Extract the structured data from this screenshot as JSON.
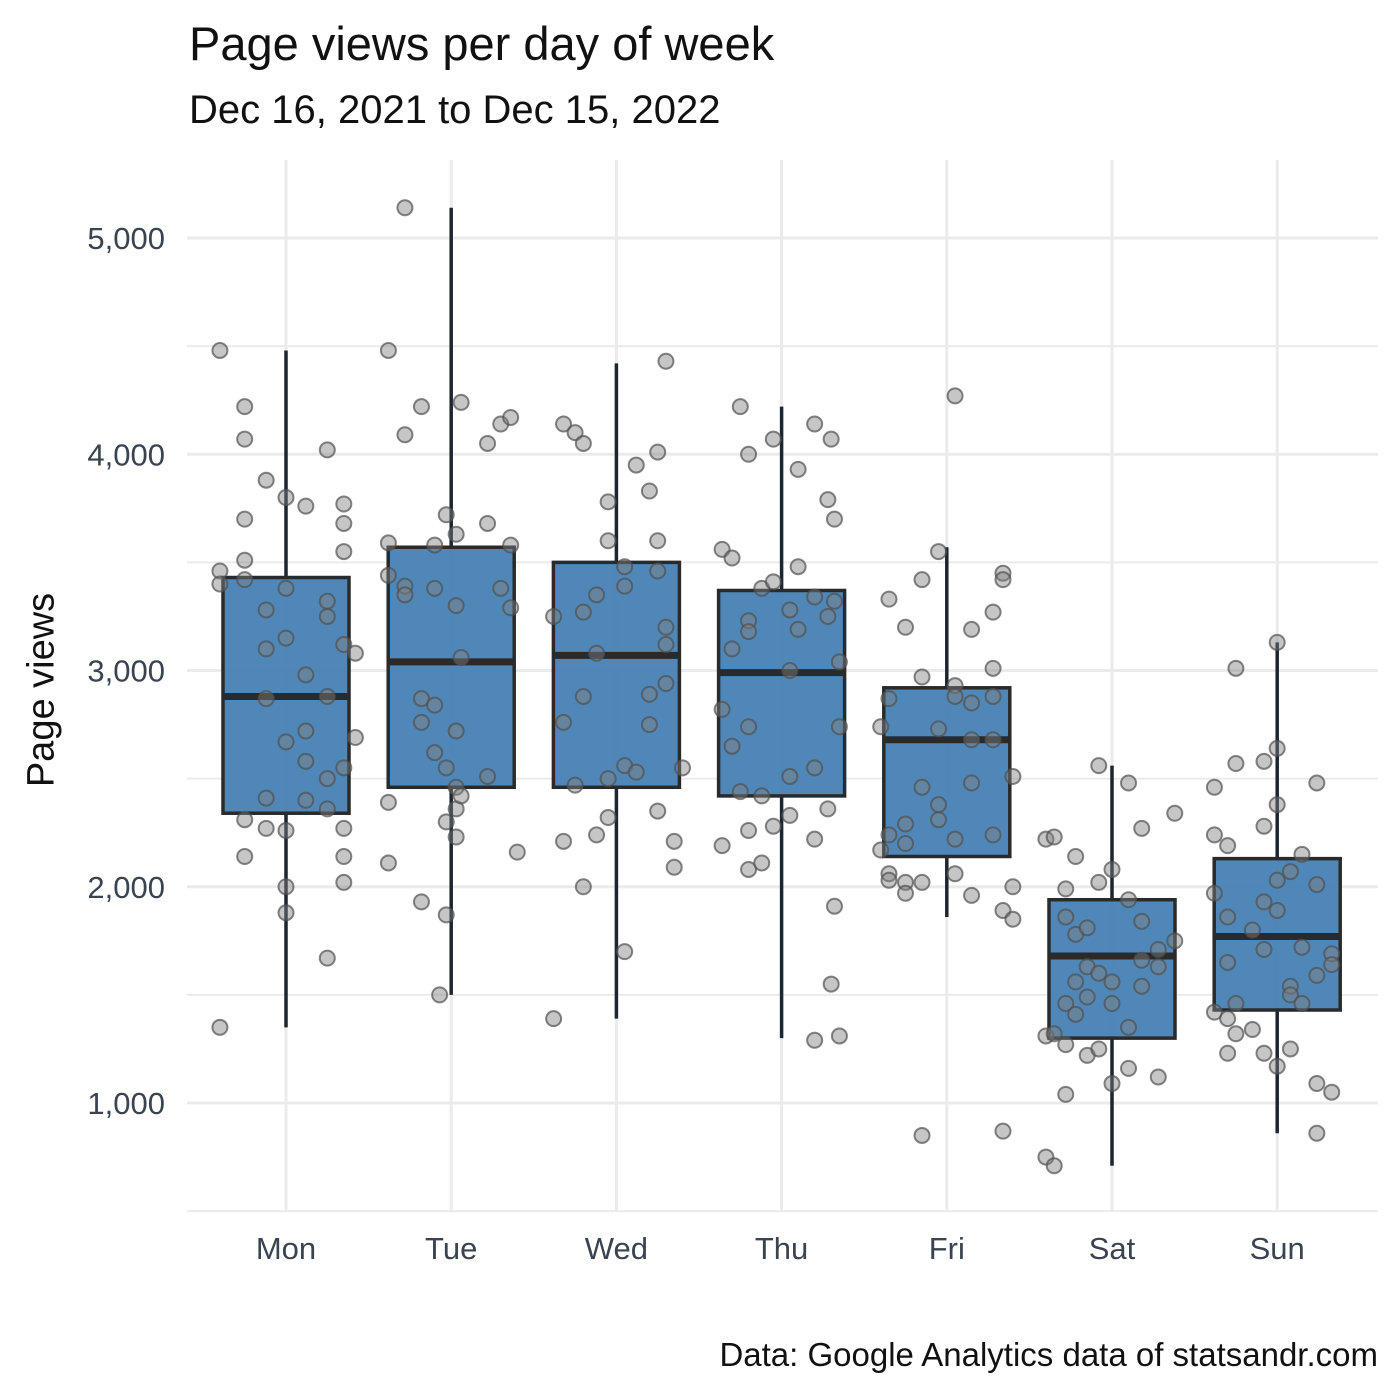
{
  "chart_data": {
    "type": "boxplot",
    "title": "Page views per day of week",
    "subtitle": "Dec 16, 2021 to Dec 15, 2022",
    "caption": "Data: Google Analytics data of statsandr.com",
    "xlabel": "",
    "ylabel": "Page views",
    "ylim": [
      500,
      5300
    ],
    "yticks": [
      1000,
      2000,
      3000,
      4000,
      5000
    ],
    "ytick_labels": [
      "1,000",
      "2,000",
      "3,000",
      "4,000",
      "5,000"
    ],
    "grid": true,
    "box_color": "#4682b4",
    "point_color": "#808080",
    "categories": [
      "Mon",
      "Tue",
      "Wed",
      "Thu",
      "Fri",
      "Sat",
      "Sun"
    ],
    "boxes": [
      {
        "category": "Mon",
        "whisker_low": 1350,
        "q1": 2340,
        "median": 2880,
        "q3": 3430,
        "whisker_high": 4480
      },
      {
        "category": "Tue",
        "whisker_low": 1500,
        "q1": 2460,
        "median": 3040,
        "q3": 3570,
        "whisker_high": 5140
      },
      {
        "category": "Wed",
        "whisker_low": 1390,
        "q1": 2460,
        "median": 3070,
        "q3": 3500,
        "whisker_high": 4420
      },
      {
        "category": "Thu",
        "whisker_low": 1300,
        "q1": 2420,
        "median": 2990,
        "q3": 3370,
        "whisker_high": 4220
      },
      {
        "category": "Fri",
        "whisker_low": 1860,
        "q1": 2140,
        "median": 2680,
        "q3": 2920,
        "whisker_high": 3570
      },
      {
        "category": "Sat",
        "whisker_low": 710,
        "q1": 1300,
        "median": 1680,
        "q3": 1940,
        "whisker_high": 2560
      },
      {
        "category": "Sun",
        "whisker_low": 860,
        "q1": 1430,
        "median": 1770,
        "q3": 2130,
        "whisker_high": 3130
      }
    ],
    "points": [
      {
        "category": "Mon",
        "x_offset": -0.4,
        "values": [
          4480,
          3460,
          3400,
          1350
        ]
      },
      {
        "category": "Mon",
        "x_offset": -0.25,
        "values": [
          4220,
          4070,
          3700,
          3510,
          3420,
          2310,
          2140
        ]
      },
      {
        "category": "Mon",
        "x_offset": -0.12,
        "values": [
          3880,
          3280,
          3100,
          2870,
          2410,
          2270
        ]
      },
      {
        "category": "Mon",
        "x_offset": 0.0,
        "values": [
          3800,
          3380,
          3150,
          2670,
          2260,
          2000,
          1880
        ]
      },
      {
        "category": "Mon",
        "x_offset": 0.12,
        "values": [
          3760,
          2980,
          2720,
          2580,
          2400
        ]
      },
      {
        "category": "Mon",
        "x_offset": 0.25,
        "values": [
          4020,
          3320,
          3250,
          2880,
          2500,
          2360,
          1670
        ]
      },
      {
        "category": "Mon",
        "x_offset": 0.35,
        "values": [
          3770,
          3680,
          3550,
          3120,
          2550,
          2270,
          2140,
          2020
        ]
      },
      {
        "category": "Mon",
        "x_offset": 0.42,
        "values": [
          3080,
          2690
        ]
      },
      {
        "category": "Tue",
        "x_offset": -0.38,
        "values": [
          4480,
          3590,
          3440,
          2390,
          2110
        ]
      },
      {
        "category": "Tue",
        "x_offset": -0.28,
        "values": [
          5140,
          4090,
          3390,
          3350
        ]
      },
      {
        "category": "Tue",
        "x_offset": -0.18,
        "values": [
          4220,
          2870,
          2760,
          1930
        ]
      },
      {
        "category": "Tue",
        "x_offset": -0.1,
        "values": [
          3580,
          3380,
          2840,
          2620
        ]
      },
      {
        "category": "Tue",
        "x_offset": -0.03,
        "values": [
          3720,
          2550,
          2300,
          1870
        ]
      },
      {
        "category": "Tue",
        "x_offset": 0.03,
        "values": [
          3630,
          3300,
          2720,
          2460,
          2360,
          2230
        ]
      },
      {
        "category": "Tue",
        "x_offset": -0.07,
        "values": [
          1500
        ]
      },
      {
        "category": "Tue",
        "x_offset": 0.06,
        "values": [
          4240,
          3060,
          2420
        ]
      },
      {
        "category": "Tue",
        "x_offset": 0.22,
        "values": [
          4050,
          3680,
          2510
        ]
      },
      {
        "category": "Tue",
        "x_offset": 0.3,
        "values": [
          4140,
          3380
        ]
      },
      {
        "category": "Tue",
        "x_offset": 0.36,
        "values": [
          4170,
          3580,
          3290
        ]
      },
      {
        "category": "Tue",
        "x_offset": 0.4,
        "values": [
          2160
        ]
      },
      {
        "category": "Wed",
        "x_offset": -0.38,
        "values": [
          3250,
          1390
        ]
      },
      {
        "category": "Wed",
        "x_offset": -0.32,
        "values": [
          4140,
          2760,
          2210
        ]
      },
      {
        "category": "Wed",
        "x_offset": -0.25,
        "values": [
          4100,
          2470
        ]
      },
      {
        "category": "Wed",
        "x_offset": -0.2,
        "values": [
          4050,
          3270,
          2880,
          2000
        ]
      },
      {
        "category": "Wed",
        "x_offset": -0.12,
        "values": [
          3350,
          3080,
          2240
        ]
      },
      {
        "category": "Wed",
        "x_offset": -0.05,
        "values": [
          3780,
          3600,
          2500,
          2320
        ]
      },
      {
        "category": "Wed",
        "x_offset": 0.05,
        "values": [
          3480,
          3390,
          2560,
          1700
        ]
      },
      {
        "category": "Wed",
        "x_offset": 0.12,
        "values": [
          3950,
          2530
        ]
      },
      {
        "category": "Wed",
        "x_offset": 0.2,
        "values": [
          3830,
          2890,
          2750
        ]
      },
      {
        "category": "Wed",
        "x_offset": 0.25,
        "values": [
          4010,
          3600,
          3460,
          2350
        ]
      },
      {
        "category": "Wed",
        "x_offset": 0.3,
        "values": [
          4430,
          3200,
          3120,
          2940
        ]
      },
      {
        "category": "Wed",
        "x_offset": 0.35,
        "values": [
          2210,
          2090
        ]
      },
      {
        "category": "Wed",
        "x_offset": 0.4,
        "values": [
          2550
        ]
      },
      {
        "category": "Thu",
        "x_offset": -0.36,
        "values": [
          3560,
          2820,
          2190
        ]
      },
      {
        "category": "Thu",
        "x_offset": -0.3,
        "values": [
          3520,
          3100,
          2650
        ]
      },
      {
        "category": "Thu",
        "x_offset": -0.25,
        "values": [
          4220,
          2440
        ]
      },
      {
        "category": "Thu",
        "x_offset": -0.2,
        "values": [
          4000,
          3230,
          3180,
          2740,
          2260,
          2080
        ]
      },
      {
        "category": "Thu",
        "x_offset": -0.12,
        "values": [
          3380,
          2420,
          2110
        ]
      },
      {
        "category": "Thu",
        "x_offset": -0.05,
        "values": [
          4070,
          3410,
          2280
        ]
      },
      {
        "category": "Thu",
        "x_offset": 0.05,
        "values": [
          3280,
          3000,
          2510,
          2330
        ]
      },
      {
        "category": "Thu",
        "x_offset": 0.1,
        "values": [
          3930,
          3480,
          3190
        ]
      },
      {
        "category": "Thu",
        "x_offset": 0.2,
        "values": [
          4140,
          3340,
          2550,
          2220,
          1290
        ]
      },
      {
        "category": "Thu",
        "x_offset": 0.28,
        "values": [
          3790,
          3250,
          2360
        ]
      },
      {
        "category": "Thu",
        "x_offset": 0.3,
        "values": [
          4070,
          1550
        ]
      },
      {
        "category": "Thu",
        "x_offset": 0.32,
        "values": [
          3700,
          3320,
          1910
        ]
      },
      {
        "category": "Thu",
        "x_offset": 0.35,
        "values": [
          3040,
          2740,
          1310
        ]
      },
      {
        "category": "Fri",
        "x_offset": -0.4,
        "values": [
          2740,
          2170
        ]
      },
      {
        "category": "Fri",
        "x_offset": -0.35,
        "values": [
          3330,
          2870,
          2240,
          2060,
          2030
        ]
      },
      {
        "category": "Fri",
        "x_offset": -0.25,
        "values": [
          3200,
          2290,
          2200,
          2020,
          1970
        ]
      },
      {
        "category": "Fri",
        "x_offset": -0.15,
        "values": [
          3420,
          2970,
          2460,
          2020,
          850
        ]
      },
      {
        "category": "Fri",
        "x_offset": -0.05,
        "values": [
          3550,
          2730,
          2310,
          2380
        ]
      },
      {
        "category": "Fri",
        "x_offset": 0.05,
        "values": [
          4270,
          2930,
          2880,
          2220,
          2060
        ]
      },
      {
        "category": "Fri",
        "x_offset": 0.15,
        "values": [
          3190,
          2850,
          2680,
          2480,
          1960
        ]
      },
      {
        "category": "Fri",
        "x_offset": 0.28,
        "values": [
          3270,
          3010,
          2880,
          2680,
          2240
        ]
      },
      {
        "category": "Fri",
        "x_offset": 0.34,
        "values": [
          3450,
          3420,
          1890,
          870
        ]
      },
      {
        "category": "Fri",
        "x_offset": 0.4,
        "values": [
          2510,
          2000,
          1850
        ]
      },
      {
        "category": "Sat",
        "x_offset": -0.4,
        "values": [
          2220,
          1310,
          750
        ]
      },
      {
        "category": "Sat",
        "x_offset": -0.35,
        "values": [
          2230,
          1320,
          710
        ]
      },
      {
        "category": "Sat",
        "x_offset": -0.28,
        "values": [
          1990,
          1860,
          1460,
          1270,
          1040
        ]
      },
      {
        "category": "Sat",
        "x_offset": -0.22,
        "values": [
          2140,
          1780,
          1560,
          1410
        ]
      },
      {
        "category": "Sat",
        "x_offset": -0.15,
        "values": [
          1810,
          1630,
          1490,
          1220
        ]
      },
      {
        "category": "Sat",
        "x_offset": -0.08,
        "values": [
          2560,
          2020,
          1600,
          1250
        ]
      },
      {
        "category": "Sat",
        "x_offset": 0.0,
        "values": [
          2080,
          1560,
          1460,
          1090
        ]
      },
      {
        "category": "Sat",
        "x_offset": 0.1,
        "values": [
          2480,
          1940,
          1350,
          1160
        ]
      },
      {
        "category": "Sat",
        "x_offset": 0.18,
        "values": [
          2270,
          1840,
          1660,
          1540
        ]
      },
      {
        "category": "Sat",
        "x_offset": 0.28,
        "values": [
          1710,
          1630,
          1120
        ]
      },
      {
        "category": "Sat",
        "x_offset": 0.38,
        "values": [
          2340,
          1750
        ]
      },
      {
        "category": "Sun",
        "x_offset": -0.38,
        "values": [
          2460,
          2240,
          1970,
          1420
        ]
      },
      {
        "category": "Sun",
        "x_offset": -0.3,
        "values": [
          2190,
          1860,
          1650,
          1390,
          1230
        ]
      },
      {
        "category": "Sun",
        "x_offset": -0.25,
        "values": [
          3010,
          2570,
          1460,
          1320
        ]
      },
      {
        "category": "Sun",
        "x_offset": -0.15,
        "values": [
          1800,
          1340
        ]
      },
      {
        "category": "Sun",
        "x_offset": -0.08,
        "values": [
          2580,
          2280,
          1930,
          1710,
          1230
        ]
      },
      {
        "category": "Sun",
        "x_offset": 0.0,
        "values": [
          3130,
          2640,
          2380,
          2030,
          1890,
          1170
        ]
      },
      {
        "category": "Sun",
        "x_offset": 0.08,
        "values": [
          2070,
          1540,
          1500,
          1250
        ]
      },
      {
        "category": "Sun",
        "x_offset": 0.15,
        "values": [
          2150,
          1720,
          1460
        ]
      },
      {
        "category": "Sun",
        "x_offset": 0.24,
        "values": [
          2480,
          2010,
          1590,
          1090,
          860
        ]
      },
      {
        "category": "Sun",
        "x_offset": 0.33,
        "values": [
          1690,
          1640,
          1050
        ]
      }
    ]
  }
}
